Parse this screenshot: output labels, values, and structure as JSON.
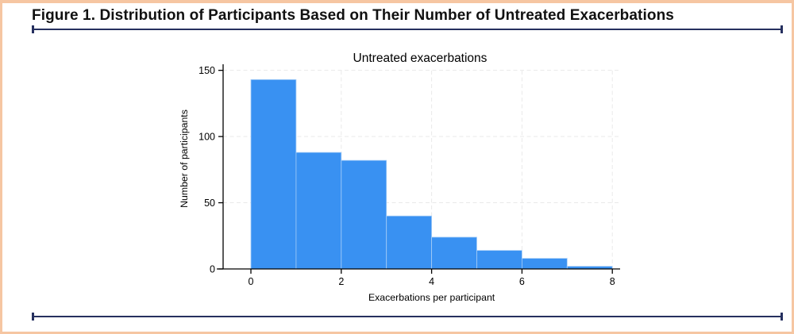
{
  "figure": {
    "title": "Figure 1. Distribution of Participants Based on Their Number of Untreated Exacerbations"
  },
  "colors": {
    "frame_border": "#f6c6a2",
    "rule": "#26305f",
    "bar_fill": "#3991f2",
    "bar_outline": "#a6cdf7",
    "gridline": "#e9e9e9",
    "axis": "#000000",
    "text": "#000000"
  },
  "chart_data": {
    "type": "bar",
    "subtype": "histogram",
    "title": "Untreated exacerbations",
    "xlabel": "Exacerbations per participant",
    "ylabel": "Number of participants",
    "bin_edges": [
      0,
      1,
      2,
      3,
      4,
      5,
      6,
      7,
      8
    ],
    "values": [
      143,
      88,
      82,
      40,
      24,
      14,
      8,
      2
    ],
    "x_ticks": [
      0,
      2,
      4,
      6,
      8
    ],
    "y_ticks": [
      0,
      50,
      100,
      150
    ],
    "xlim": [
      0,
      8
    ],
    "ylim": [
      0,
      150
    ],
    "grid": "dashed horizontal and vertical",
    "legend": "none"
  }
}
